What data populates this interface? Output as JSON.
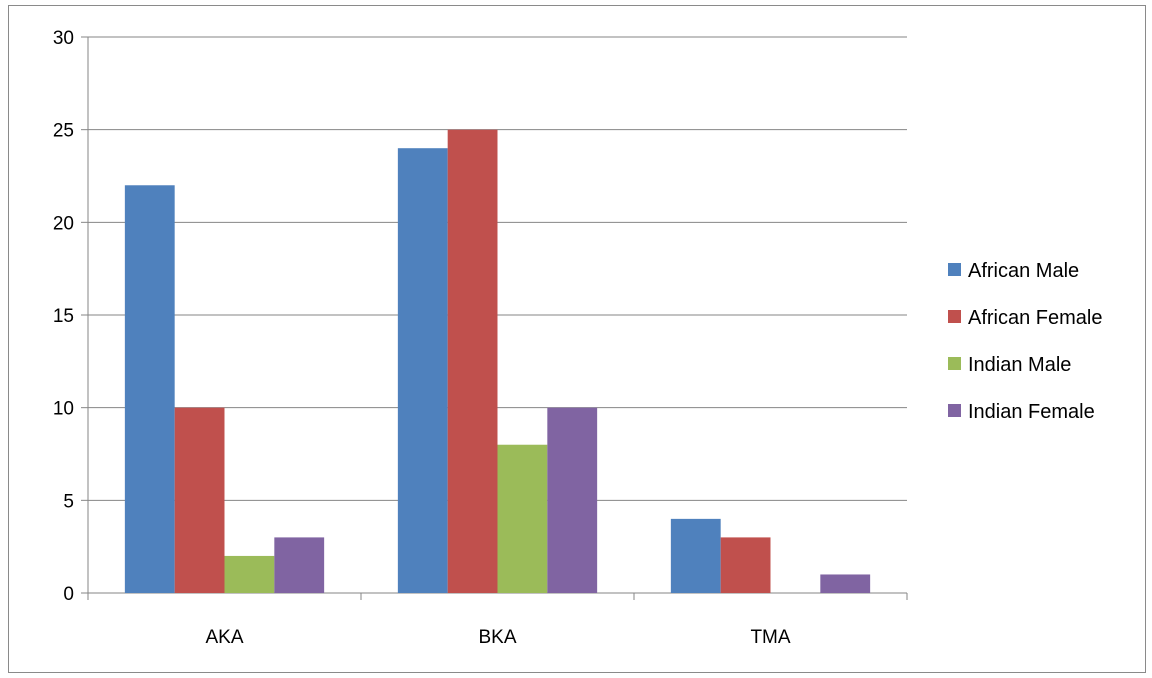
{
  "chart_data": {
    "type": "bar",
    "title": "",
    "xlabel": "",
    "ylabel": "",
    "categories": [
      "AKA",
      "BKA",
      "TMA"
    ],
    "series": [
      {
        "name": "African Male",
        "color": "#4F81BD",
        "values": [
          22,
          24,
          4
        ]
      },
      {
        "name": "African Female",
        "color": "#C0504D",
        "values": [
          10,
          25,
          3
        ]
      },
      {
        "name": "Indian Male",
        "color": "#9BBB59",
        "values": [
          2,
          8,
          0
        ]
      },
      {
        "name": "Indian Female",
        "color": "#8064A2",
        "values": [
          3,
          10,
          1
        ]
      }
    ],
    "ylim": [
      0,
      30
    ],
    "yticks": [
      "0",
      "5",
      "10",
      "15",
      "20",
      "25",
      "30"
    ],
    "grid": true,
    "legend_position": "right"
  }
}
